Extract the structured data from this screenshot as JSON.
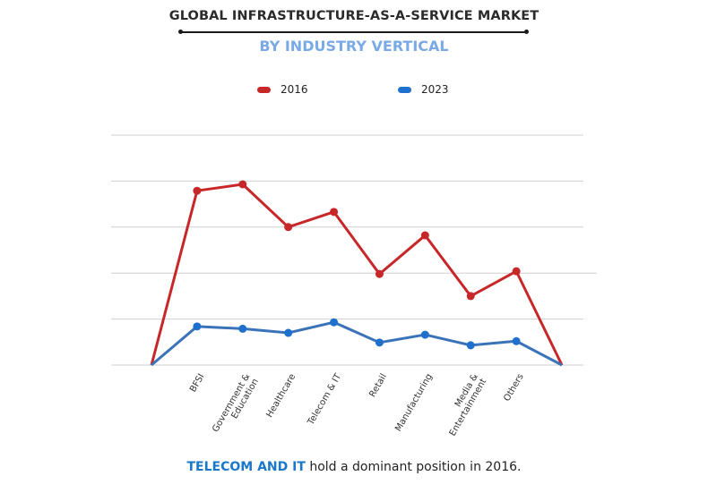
{
  "header": {
    "title": "GLOBAL INFRASTRUCTURE-AS-A-SERVICE MARKET",
    "subtitle": "BY INDUSTRY VERTICAL"
  },
  "footer": {
    "highlight": "TELECOM AND IT",
    "text": " hold a dominant position in 2016."
  },
  "chart_data": {
    "type": "line",
    "title": "GLOBAL INFRASTRUCTURE-AS-A-SERVICE MARKET",
    "subtitle": "BY INDUSTRY VERTICAL",
    "xlabel": "",
    "ylabel": "",
    "ylim": [
      0,
      5
    ],
    "y_ticks_labeled": false,
    "grid": true,
    "legend_position": "top-center",
    "categories": [
      "",
      "BFSI",
      "Government & Education",
      "Healthcare",
      "Telecom & IT",
      "Retail",
      "Manufacturing",
      "Media & Entertainment",
      "Others",
      ""
    ],
    "category_label_lines": [
      [],
      [
        "BFSI"
      ],
      [
        "Government &",
        "Education"
      ],
      [
        "Healthcare"
      ],
      [
        "Telecom & IT"
      ],
      [
        "Retail"
      ],
      [
        "Manufacturing"
      ],
      [
        "Media &",
        "Entertainment"
      ],
      [
        "Others"
      ],
      []
    ],
    "series": [
      {
        "name": "2016",
        "color": "#c8272a",
        "values": [
          0,
          3.79,
          3.93,
          3.0,
          3.33,
          1.98,
          2.82,
          1.5,
          2.04,
          0
        ]
      },
      {
        "name": "2023",
        "color": "#1f6fcf",
        "line_color": "#3b73b9",
        "values": [
          0,
          0.84,
          0.79,
          0.7,
          0.93,
          0.49,
          0.66,
          0.43,
          0.52,
          0
        ]
      }
    ]
  }
}
